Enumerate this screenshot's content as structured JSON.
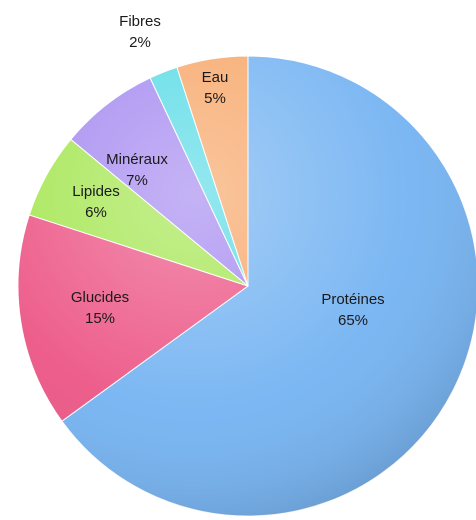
{
  "chart_data": {
    "type": "pie",
    "categories": [
      "Protéines",
      "Glucides",
      "Lipides",
      "Minéraux",
      "Fibres",
      "Eau"
    ],
    "values": [
      65,
      15,
      6,
      7,
      2,
      5
    ],
    "value_labels": [
      "65%",
      "15%",
      "6%",
      "7%",
      "2%",
      "5%"
    ],
    "colors": [
      "#74b3f2",
      "#ec5585",
      "#a5e652",
      "#a58af0",
      "#5adbe6",
      "#f7a769"
    ]
  }
}
